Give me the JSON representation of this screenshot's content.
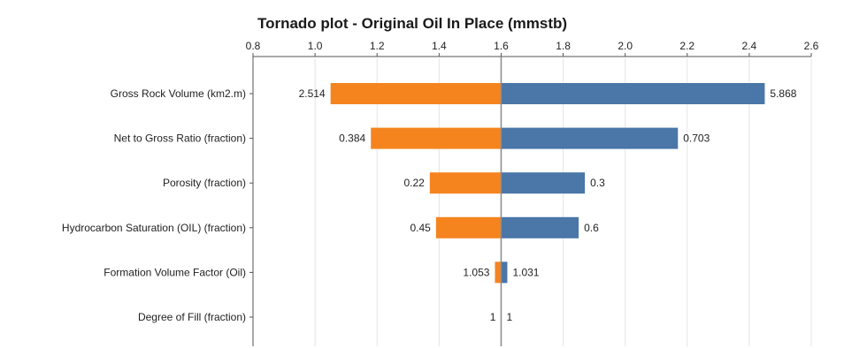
{
  "chart_data": {
    "type": "bar",
    "orientation": "horizontal",
    "variant": "tornado",
    "title": "Tornado plot - Original Oil In Place  (mmstb)",
    "xlim": [
      0.8,
      2.6
    ],
    "x_ticks": [
      "0.8",
      "1.0",
      "1.2",
      "1.4",
      "1.6",
      "1.8",
      "2.0",
      "2.2",
      "2.4",
      "2.6"
    ],
    "x_tick_values": [
      0.8,
      1.0,
      1.2,
      1.4,
      1.6,
      1.8,
      2.0,
      2.2,
      2.4,
      2.6
    ],
    "x_axis_position": "top",
    "base_value": 1.6,
    "grid": "vertical",
    "categories": [
      "Gross Rock Volume  (km2.m)",
      "Net to Gross Ratio  (fraction)",
      "Porosity  (fraction)",
      "Hydrocarbon Saturation (OIL)  (fraction)",
      "Formation Volume Factor (Oil)",
      "Degree of Fill  (fraction)"
    ],
    "series": [
      {
        "color": "#f5841f",
        "bar_end": [
          1.05,
          1.18,
          1.37,
          1.39,
          1.58,
          1.6
        ],
        "labels": [
          "2.514",
          "0.384",
          "0.22",
          "0.45",
          "1.053",
          "1"
        ]
      },
      {
        "color": "#4a76a8",
        "bar_end": [
          2.45,
          2.17,
          1.87,
          1.85,
          1.62,
          1.6
        ],
        "labels": [
          "5.868",
          "0.703",
          "0.3",
          "0.6",
          "1.031",
          "1"
        ]
      }
    ]
  }
}
